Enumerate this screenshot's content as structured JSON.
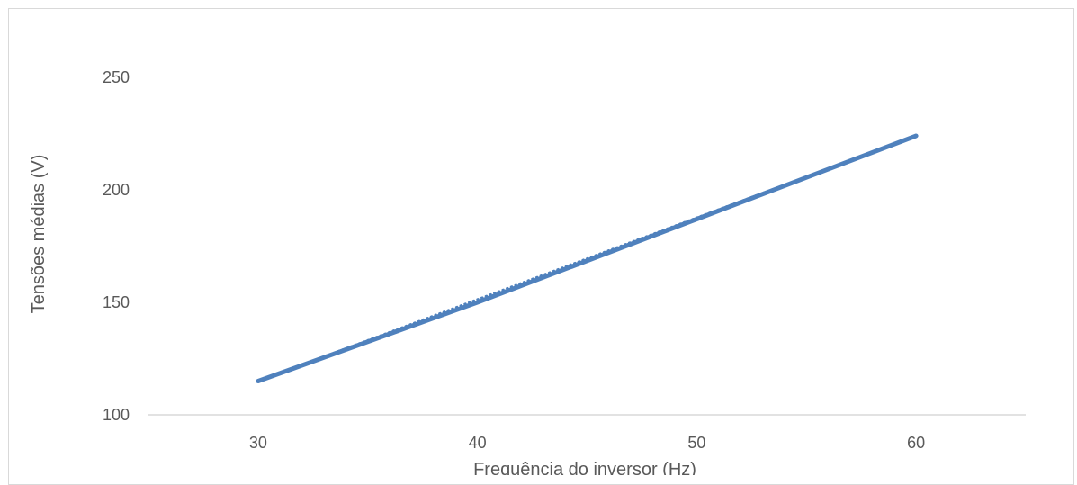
{
  "chart_data": {
    "type": "line",
    "title": "",
    "xlabel": "Frequência do inversor (Hz)",
    "ylabel": "Tensões médias (V)",
    "xlim": [
      25,
      65
    ],
    "ylim": [
      100,
      250
    ],
    "xticks": [
      30,
      40,
      50,
      60
    ],
    "yticks": [
      100,
      150,
      200,
      250
    ],
    "grid": false,
    "legend": "none",
    "series": [
      {
        "color": "#4f81bd",
        "style": "solid",
        "x": [
          30,
          40,
          50,
          60
        ],
        "y": [
          115,
          150,
          187,
          224
        ]
      },
      {
        "color": "#4f81bd",
        "style": "dotted",
        "x": [
          30,
          60
        ],
        "y": [
          115,
          224
        ]
      }
    ]
  }
}
